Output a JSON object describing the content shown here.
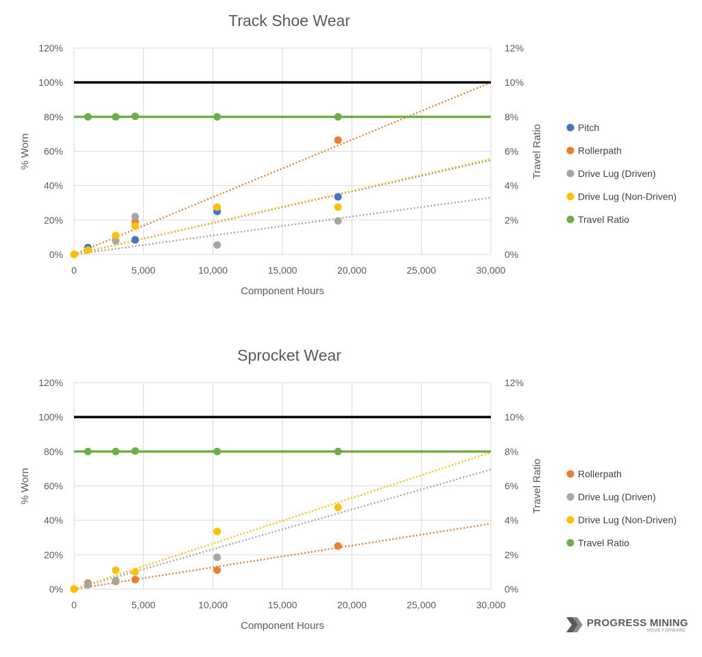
{
  "chart_data": [
    {
      "type": "scatter",
      "title": "Track Shoe Wear",
      "xlabel": "Component Hours",
      "ylabel": "% Worn",
      "y2label": "Travel Ratio",
      "xlim": [
        0,
        30000
      ],
      "ylim": [
        0,
        1.2
      ],
      "y2lim": [
        0,
        0.12
      ],
      "x_ticks": [
        {
          "value": 0,
          "label": "0"
        },
        {
          "value": 5000,
          "label": "5,000"
        },
        {
          "value": 10000,
          "label": "10,000"
        },
        {
          "value": 15000,
          "label": "15,000"
        },
        {
          "value": 20000,
          "label": "20,000"
        },
        {
          "value": 25000,
          "label": "25,000"
        },
        {
          "value": 30000,
          "label": "30,000"
        }
      ],
      "y_ticks": [
        {
          "value": 0,
          "label": "0%"
        },
        {
          "value": 0.2,
          "label": "20%"
        },
        {
          "value": 0.4,
          "label": "40%"
        },
        {
          "value": 0.6,
          "label": "60%"
        },
        {
          "value": 0.8,
          "label": "80%"
        },
        {
          "value": 1.0,
          "label": "100%"
        },
        {
          "value": 1.2,
          "label": "120%"
        }
      ],
      "y2_ticks": [
        {
          "value": 0,
          "label": "0%"
        },
        {
          "value": 0.02,
          "label": "2%"
        },
        {
          "value": 0.04,
          "label": "4%"
        },
        {
          "value": 0.06,
          "label": "6%"
        },
        {
          "value": 0.08,
          "label": "8%"
        },
        {
          "value": 0.1,
          "label": "10%"
        },
        {
          "value": 0.12,
          "label": "12%"
        }
      ],
      "reference_lines": [
        {
          "name": "100% limit",
          "y": 1.0,
          "color": "#000000"
        },
        {
          "name": "Travel ratio limit",
          "y": 0.8,
          "color": "#70ad47"
        }
      ],
      "series": [
        {
          "name": "Pitch",
          "color": "#4472c4",
          "x": [
            0,
            1000,
            4400,
            10300,
            19000
          ],
          "y": [
            0,
            0.04,
            0.085,
            0.25,
            0.335
          ],
          "trend_end": 0.55,
          "legend": true
        },
        {
          "name": "Rollerpath",
          "color": "#ed7d31",
          "x": [
            0,
            4400,
            19000
          ],
          "y": [
            0,
            0.19,
            0.665
          ],
          "trend_end": 1.0,
          "legend": true
        },
        {
          "name": "Drive Lug (Driven)",
          "color": "#a5a5a5",
          "x": [
            0,
            3000,
            4400,
            10300,
            19000
          ],
          "y": [
            0,
            0.08,
            0.22,
            0.055,
            0.195
          ],
          "trend_end": 0.33,
          "legend": true
        },
        {
          "name": "Drive Lug (Non-Driven)",
          "color": "#ffc000",
          "x": [
            0,
            1000,
            3000,
            4400,
            10300,
            19000
          ],
          "y": [
            0,
            0.025,
            0.11,
            0.165,
            0.275,
            0.275
          ],
          "trend_end": 0.555,
          "legend": true
        },
        {
          "name": "Travel Ratio",
          "color": "#70ad47",
          "axis": "y2",
          "x": [
            1000,
            3000,
            4400,
            10300,
            19000
          ],
          "y": [
            0.08,
            0.08,
            0.0803,
            0.08,
            0.08
          ],
          "legend": true
        }
      ]
    },
    {
      "type": "scatter",
      "title": "Sprocket Wear",
      "xlabel": "Component Hours",
      "ylabel": "% Worn",
      "y2label": "Travel Ratio",
      "xlim": [
        0,
        30000
      ],
      "ylim": [
        0,
        1.2
      ],
      "y2lim": [
        0,
        0.12
      ],
      "x_ticks": [
        {
          "value": 0,
          "label": "0"
        },
        {
          "value": 5000,
          "label": "5,000"
        },
        {
          "value": 10000,
          "label": "10,000"
        },
        {
          "value": 15000,
          "label": "15,000"
        },
        {
          "value": 20000,
          "label": "20,000"
        },
        {
          "value": 25000,
          "label": "25,000"
        },
        {
          "value": 30000,
          "label": "30,000"
        }
      ],
      "y_ticks": [
        {
          "value": 0,
          "label": "0%"
        },
        {
          "value": 0.2,
          "label": "20%"
        },
        {
          "value": 0.4,
          "label": "40%"
        },
        {
          "value": 0.6,
          "label": "60%"
        },
        {
          "value": 0.8,
          "label": "80%"
        },
        {
          "value": 1.0,
          "label": "100%"
        },
        {
          "value": 1.2,
          "label": "120%"
        }
      ],
      "y2_ticks": [
        {
          "value": 0,
          "label": "0%"
        },
        {
          "value": 0.02,
          "label": "2%"
        },
        {
          "value": 0.04,
          "label": "4%"
        },
        {
          "value": 0.06,
          "label": "6%"
        },
        {
          "value": 0.08,
          "label": "8%"
        },
        {
          "value": 0.1,
          "label": "10%"
        },
        {
          "value": 0.12,
          "label": "12%"
        }
      ],
      "reference_lines": [
        {
          "name": "100% limit",
          "y": 1.0,
          "color": "#000000"
        },
        {
          "name": "Travel ratio limit",
          "y": 0.8,
          "color": "#70ad47"
        }
      ],
      "series": [
        {
          "name": "Pitch",
          "color": "#4472c4",
          "x": [
            0
          ],
          "y": [
            0
          ],
          "legend": false
        },
        {
          "name": "Rollerpath",
          "color": "#ed7d31",
          "x": [
            0,
            1000,
            3000,
            4400,
            10300,
            19000
          ],
          "y": [
            0,
            0.035,
            0.045,
            0.055,
            0.11,
            0.25
          ],
          "trend_end": 0.38,
          "legend": true
        },
        {
          "name": "Drive Lug (Driven)",
          "color": "#a5a5a5",
          "x": [
            0,
            1000,
            3000,
            10300
          ],
          "y": [
            0,
            0.025,
            0.05,
            0.185
          ],
          "trend_end": 0.695,
          "legend": true
        },
        {
          "name": "Drive Lug (Non-Driven)",
          "color": "#ffc000",
          "x": [
            0,
            3000,
            4400,
            10300,
            19000
          ],
          "y": [
            0,
            0.11,
            0.1,
            0.335,
            0.475
          ],
          "trend_end": 0.795,
          "legend": true
        },
        {
          "name": "Travel Ratio",
          "color": "#70ad47",
          "axis": "y2",
          "x": [
            1000,
            3000,
            4400,
            10300,
            19000
          ],
          "y": [
            0.08,
            0.08,
            0.0803,
            0.08,
            0.08
          ],
          "legend": true
        }
      ]
    }
  ],
  "logo": {
    "name": "PROGRESS MINING",
    "tagline": "MOVE FORWARD"
  }
}
